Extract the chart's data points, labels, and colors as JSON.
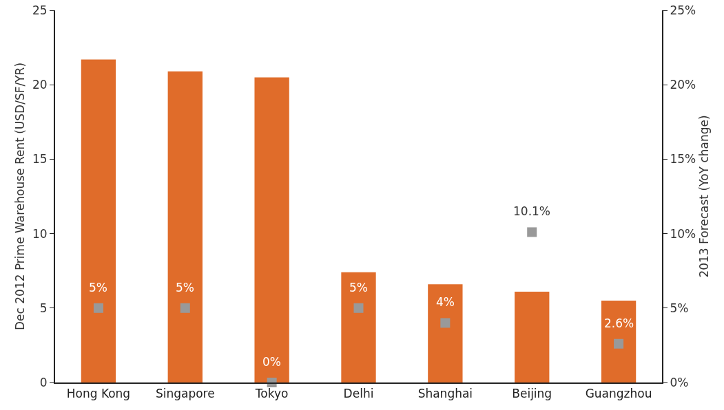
{
  "chart_data": {
    "type": "bar",
    "ylabel": "Dec 2012 Prime Warehouse Rent (USD/SF/YR)",
    "y2label": "2013 Forecast (YoY change)",
    "categories": [
      "Hong Kong",
      "Singapore",
      "Tokyo",
      "Delhi",
      "Shanghai",
      "Beijing",
      "Guangzhou"
    ],
    "series": [
      {
        "color": "#e06c2a",
        "values": [
          21.7,
          20.9,
          20.5,
          7.4,
          6.6,
          6.1,
          5.5
        ]
      },
      {
        "type": "scatter",
        "axis": "y2",
        "color": "#999999",
        "values": [
          5,
          5,
          0,
          5,
          4,
          10.1,
          2.6
        ],
        "value_labels": [
          "5%",
          "5%",
          "0%",
          "5%",
          "4%",
          "10.1%",
          "2.6%"
        ]
      }
    ],
    "marker": "square",
    "grid": false,
    "legend": false,
    "ylim": [
      0,
      25
    ],
    "yticks": [
      0,
      5,
      10,
      15,
      20,
      25
    ],
    "y2lim": [
      0,
      25
    ],
    "y2ticks": [
      {
        "value": 0,
        "label": "0%"
      },
      {
        "value": 5,
        "label": "5%"
      },
      {
        "value": 10,
        "label": "10%"
      },
      {
        "value": 15,
        "label": "15%"
      },
      {
        "value": 20,
        "label": "20%"
      },
      {
        "value": 25,
        "label": "25%"
      }
    ]
  }
}
